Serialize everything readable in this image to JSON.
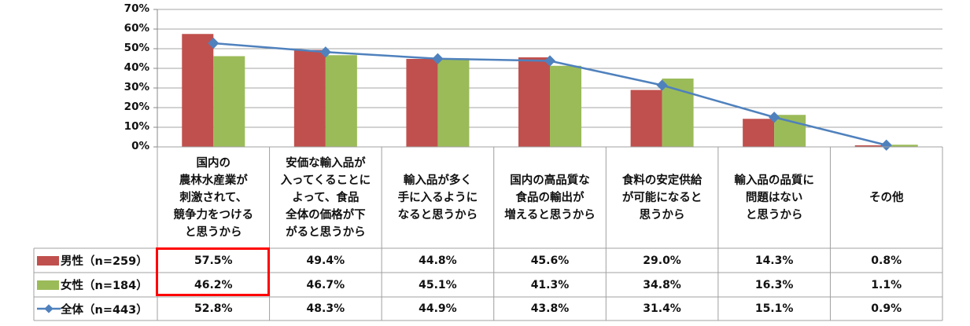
{
  "chart_data": {
    "type": "bar",
    "combo": "bar+line",
    "categories": [
      "国内の\n農林水産業が\n刺激されて、\n競争力をつける\nと思うから",
      "安価な輸入品が\n入ってくることに\nよって、食品\n全体の価格が下\nがると思うから",
      "輸入品が多く\n手に入るように\nなると思うから",
      "国内の高品質な\n食品の輸出が\n増えると思うから",
      "食料の安定供給\nが可能になると\n思うから",
      "輸入品の品質に\n問題はない\nと思うから",
      "その他"
    ],
    "series": [
      {
        "name": "男性（n=259）",
        "kind": "bar",
        "color": "#c0504d",
        "values": [
          57.5,
          49.4,
          44.8,
          45.6,
          29.0,
          14.3,
          0.8
        ],
        "labels": [
          "57.5%",
          "49.4%",
          "44.8%",
          "45.6%",
          "29.0%",
          "14.3%",
          "0.8%"
        ]
      },
      {
        "name": "女性（n=184）",
        "kind": "bar",
        "color": "#9bbb59",
        "values": [
          46.2,
          46.7,
          45.1,
          41.3,
          34.8,
          16.3,
          1.1
        ],
        "labels": [
          "46.2%",
          "46.7%",
          "45.1%",
          "41.3%",
          "34.8%",
          "16.3%",
          "1.1%"
        ]
      },
      {
        "name": "全体（n=443）",
        "kind": "line",
        "color": "#4f81bd",
        "values": [
          52.8,
          48.3,
          44.9,
          43.8,
          31.4,
          15.1,
          0.9
        ],
        "labels": [
          "52.8%",
          "48.3%",
          "44.9%",
          "43.8%",
          "31.4%",
          "15.1%",
          "0.9%"
        ]
      }
    ],
    "yticks": [
      "0%",
      "10%",
      "20%",
      "30%",
      "40%",
      "50%",
      "60%",
      "70%"
    ],
    "ylim": [
      0,
      70
    ],
    "grid": true,
    "legend": "data-table-left",
    "highlight": "first column, 男性 and 女性 rows"
  }
}
